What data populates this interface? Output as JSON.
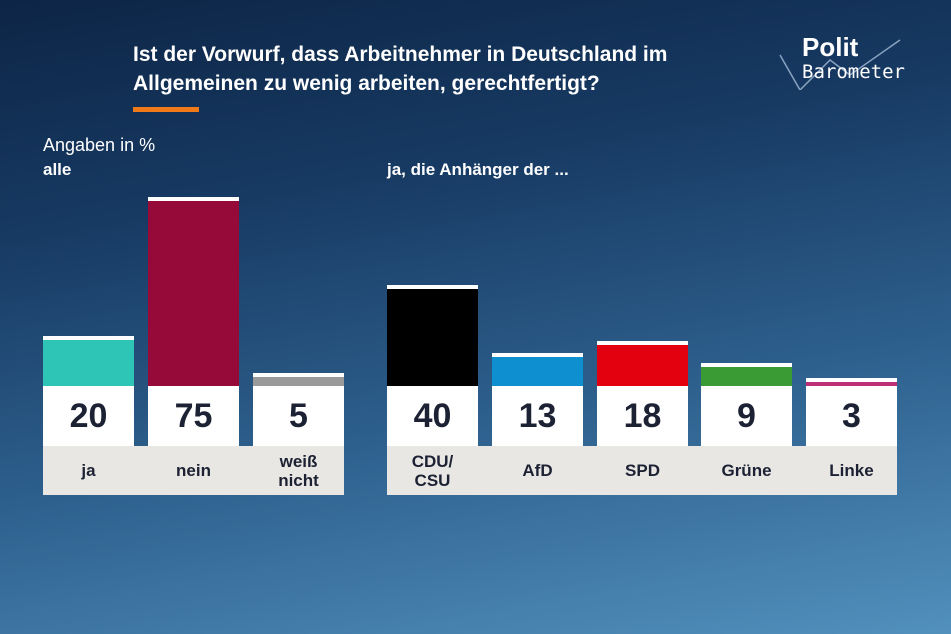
{
  "header": {
    "title": "Ist der Vorwurf, dass Arbeitnehmer in Deutschland im Allgemeinen zu wenig arbeiten, gerechtfertigt?",
    "logo_top": "Polit",
    "logo_bottom": "Barometer",
    "accent_color": "#f07a1a"
  },
  "chart_data": [
    {
      "type": "bar",
      "subtitle": "Angaben in %",
      "group_label": "alle",
      "categories": [
        "ja",
        "nein",
        "weiß\nnicht"
      ],
      "values": [
        20,
        75,
        5
      ],
      "colors": [
        "#2ec4b6",
        "#960a3a",
        "#9a9a9a"
      ],
      "ylim": [
        0,
        75
      ]
    },
    {
      "type": "bar",
      "group_label": "ja, die Anhänger der ...",
      "categories": [
        "CDU/\nCSU",
        "AfD",
        "SPD",
        "Grüne",
        "Linke"
      ],
      "values": [
        40,
        13,
        18,
        9,
        3
      ],
      "colors": [
        "#000000",
        "#0e8fd0",
        "#e3000f",
        "#3a9a33",
        "#be3075"
      ],
      "ylim": [
        0,
        75
      ]
    }
  ]
}
